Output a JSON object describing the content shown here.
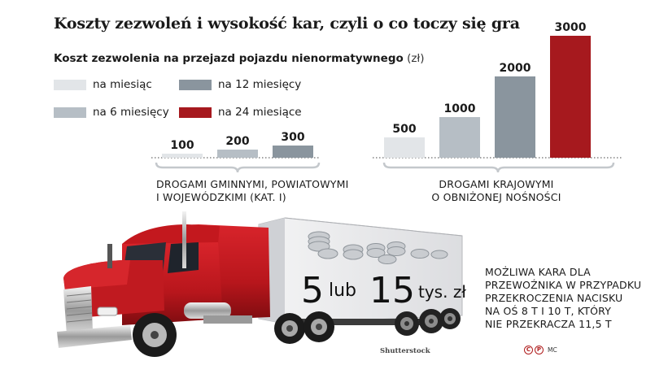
{
  "title": "Koszty zezwoleń i wysokość kar, czyli o co toczy się gra",
  "subtitle": {
    "bold": "Koszt zezwolenia na przejazd pojazdu nienormatywnego",
    "unit": "(zł)"
  },
  "legend": [
    {
      "label": "na miesiąc",
      "color": "#e2e5e8"
    },
    {
      "label": "na 12 miesięcy",
      "color": "#8a959e"
    },
    {
      "label": "na 6 miesięcy",
      "color": "#b6bec5"
    },
    {
      "label": "na 24 miesiące",
      "color": "#a6191e"
    }
  ],
  "chart_data": {
    "type": "bar",
    "title": "Koszt zezwolenia na przejazd pojazdu nienormatywnego (zł)",
    "groups": [
      {
        "label_lines": [
          "DROGAMI GMINNYMI, POWIATOWYMI",
          "I WOJEWÓDZKIMI (KAT. I)"
        ],
        "bars": [
          {
            "series": "na miesiąc",
            "value": 100,
            "label": "100"
          },
          {
            "series": "na 6 miesięcy",
            "value": 200,
            "label": "200"
          },
          {
            "series": "na 12 miesięcy",
            "value": 300,
            "label": "300"
          }
        ]
      },
      {
        "label_lines": [
          "DROGAMI KRAJOWYMI",
          "O OBNIŻONEJ NOŚNOŚCI"
        ],
        "bars": [
          {
            "series": "na miesiąc",
            "value": 500,
            "label": "500"
          },
          {
            "series": "na 6 miesięcy",
            "value": 1000,
            "label": "1000"
          },
          {
            "series": "na 12 miesięcy",
            "value": 2000,
            "label": "2000"
          },
          {
            "series": "na 24 miesiące",
            "value": 3000,
            "label": "3000"
          }
        ]
      }
    ],
    "ylim": [
      0,
      3000
    ],
    "grid": false,
    "legend_position": "top-left"
  },
  "trailer_text": {
    "n1": "5",
    "lub": "lub",
    "n2": "15",
    "unit": "tys. zł"
  },
  "fine_lines": [
    "MOŻLIWA KARA DLA",
    "PRZEWOŹNIKA W PRZYPADKU",
    "PRZEKROCZENIA NACISKU",
    "NA OŚ 8 T I 10 T, KTÓRY",
    "NIE PRZEKRACZA 11,5 T"
  ],
  "credit": "Shutterstock",
  "copyright": {
    "c": "C",
    "p": "P",
    "mc": "MC"
  }
}
